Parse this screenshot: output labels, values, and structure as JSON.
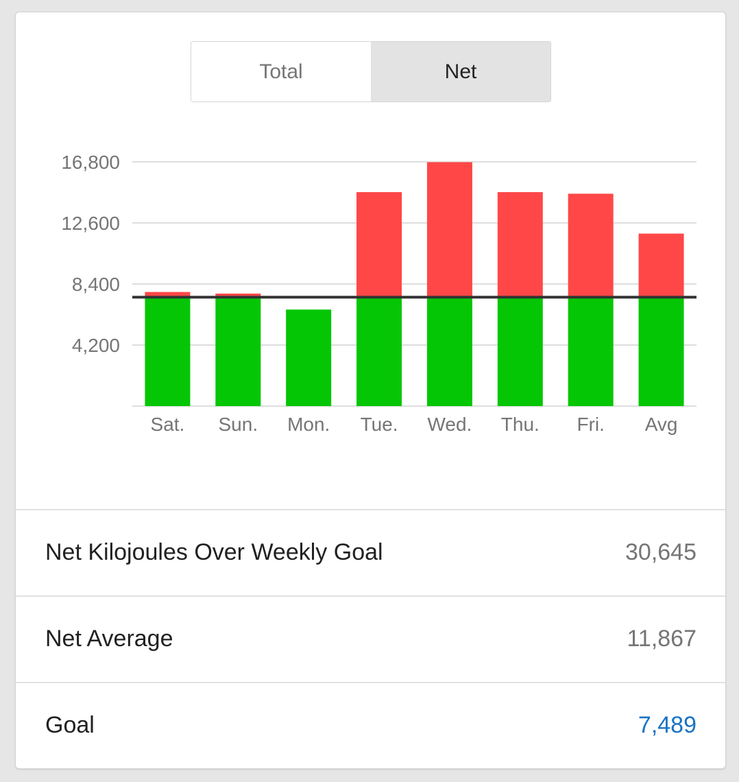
{
  "toggle": {
    "options": [
      "Total",
      "Net"
    ],
    "selected": "Net"
  },
  "colors": {
    "under_goal": "#05c605",
    "over_goal": "#ff4747",
    "goal_line": "#333333",
    "gridline": "#dddddd",
    "axis_text": "#757575",
    "goal_value": "#1a73c6"
  },
  "chart_data": {
    "type": "bar",
    "stacked": true,
    "categories": [
      "Sat.",
      "Sun.",
      "Mon.",
      "Tue.",
      "Wed.",
      "Thu.",
      "Fri.",
      "Avg"
    ],
    "totals": [
      7850,
      7740,
      6640,
      14720,
      16780,
      14720,
      14610,
      11867
    ],
    "goal": 7489,
    "series": [
      {
        "values": [
          7489,
          7489,
          6640,
          7489,
          7489,
          7489,
          7489,
          7489
        ],
        "color": "#05c605"
      },
      {
        "values": [
          361,
          251,
          0,
          7231,
          9291,
          7231,
          7121,
          4378
        ],
        "color": "#ff4747"
      }
    ],
    "yticks": [
      "16,800",
      "12,600",
      "8,400",
      "4,200"
    ],
    "ytick_values": [
      16800,
      12600,
      8400,
      4200
    ],
    "ylim": [
      0,
      16800
    ],
    "grid": true,
    "xlabel": "",
    "ylabel": ""
  },
  "stats": [
    {
      "label": "Net Kilojoules Over Weekly Goal",
      "value": "30,645"
    },
    {
      "label": "Net Average",
      "value": "11,867"
    },
    {
      "label": "Goal",
      "value": "7,489"
    }
  ]
}
